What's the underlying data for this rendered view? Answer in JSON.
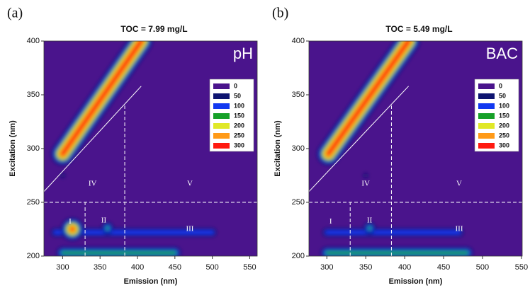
{
  "chart_data": [
    {
      "type": "contour",
      "panel": "(a)",
      "title": "TOC = 7.99 mg/L",
      "tag": "pH",
      "x_label": "Emission (nm)",
      "y_label": "Excitation (nm)",
      "xlim": [
        275,
        560
      ],
      "ylim": [
        200,
        400
      ],
      "xticks": [
        300,
        350,
        400,
        450,
        500,
        550
      ],
      "yticks": [
        200,
        250,
        300,
        350,
        400
      ],
      "levels": [
        0,
        50,
        100,
        150,
        200,
        250,
        300
      ],
      "colors": [
        "#4a148c",
        "#0e1470",
        "#1238f0",
        "#16a028",
        "#e0e828",
        "#ff9a18",
        "#ff1a10"
      ],
      "shapes": [
        {
          "em": [
            300,
            405
          ],
          "ex": [
            295,
            400
          ],
          "value": 300
        },
        {
          "em": [
            290,
            500
          ],
          "ex": [
            222,
            222
          ],
          "value": 100
        },
        {
          "em": [
            300,
            450
          ],
          "ex": [
            203,
            203
          ],
          "value": 150
        },
        {
          "em": [
            360,
            360
          ],
          "ex": [
            226,
            226
          ],
          "value": 150
        },
        {
          "em": [
            313,
            313
          ],
          "ex": [
            225,
            225
          ],
          "value": 300
        },
        {
          "em": [
            300,
            300
          ],
          "ex": [
            275,
            275
          ],
          "value": 50
        }
      ],
      "boundaries": [
        {
          "em": [
            275,
            405
          ],
          "ex": [
            260,
            358
          ],
          "style": "solid"
        },
        {
          "em": [
            275,
            560
          ],
          "ex": [
            250,
            250
          ],
          "style": "dashed"
        },
        {
          "em": [
            330,
            330
          ],
          "ex": [
            200,
            250
          ],
          "style": "dashed"
        },
        {
          "em": [
            383,
            383
          ],
          "ex": [
            200,
            340
          ],
          "style": "dashed"
        }
      ],
      "regions": [
        {
          "label": "I",
          "em": [
            310
          ],
          "ex": [
            232
          ]
        },
        {
          "label": "II",
          "em": [
            355
          ],
          "ex": [
            233
          ]
        },
        {
          "label": "III",
          "em": [
            470
          ],
          "ex": [
            225
          ]
        },
        {
          "label": "IV",
          "em": [
            340
          ],
          "ex": [
            267
          ]
        },
        {
          "label": "V",
          "em": [
            470
          ],
          "ex": [
            267
          ]
        }
      ]
    },
    {
      "type": "contour",
      "panel": "(b)",
      "title": "TOC = 5.49 mg/L",
      "tag": "BAC",
      "x_label": "Emission (nm)",
      "y_label": "Excitation (nm)",
      "xlim": [
        277,
        551
      ],
      "ylim": [
        200,
        400
      ],
      "xticks": [
        300,
        350,
        400,
        450,
        500,
        550
      ],
      "yticks": [
        200,
        250,
        300,
        350,
        400
      ],
      "levels": [
        0,
        50,
        100,
        150,
        200,
        250,
        300
      ],
      "colors": [
        "#4a148c",
        "#0e1470",
        "#1238f0",
        "#16a028",
        "#e0e828",
        "#ff9a18",
        "#ff1a10"
      ],
      "shapes": [
        {
          "em": [
            302,
            405
          ],
          "ex": [
            295,
            400
          ],
          "value": 300
        },
        {
          "em": [
            300,
            470
          ],
          "ex": [
            222,
            222
          ],
          "value": 100
        },
        {
          "em": [
            300,
            480
          ],
          "ex": [
            203,
            203
          ],
          "value": 150
        },
        {
          "em": [
            355,
            355
          ],
          "ex": [
            226,
            226
          ],
          "value": 150
        },
        {
          "em": [
            350,
            350
          ],
          "ex": [
            275,
            275
          ],
          "value": 50
        }
      ],
      "boundaries": [
        {
          "em": [
            277,
            405
          ],
          "ex": [
            260,
            358
          ],
          "style": "solid"
        },
        {
          "em": [
            277,
            551
          ],
          "ex": [
            250,
            250
          ],
          "style": "dashed"
        },
        {
          "em": [
            330,
            330
          ],
          "ex": [
            200,
            250
          ],
          "style": "dashed"
        },
        {
          "em": [
            383,
            383
          ],
          "ex": [
            200,
            340
          ],
          "style": "dashed"
        }
      ],
      "regions": [
        {
          "label": "I",
          "em": [
            305
          ],
          "ex": [
            232
          ]
        },
        {
          "label": "II",
          "em": [
            355
          ],
          "ex": [
            233
          ]
        },
        {
          "label": "III",
          "em": [
            470
          ],
          "ex": [
            225
          ]
        },
        {
          "label": "IV",
          "em": [
            350
          ],
          "ex": [
            267
          ]
        },
        {
          "label": "V",
          "em": [
            470
          ],
          "ex": [
            267
          ]
        }
      ]
    }
  ]
}
